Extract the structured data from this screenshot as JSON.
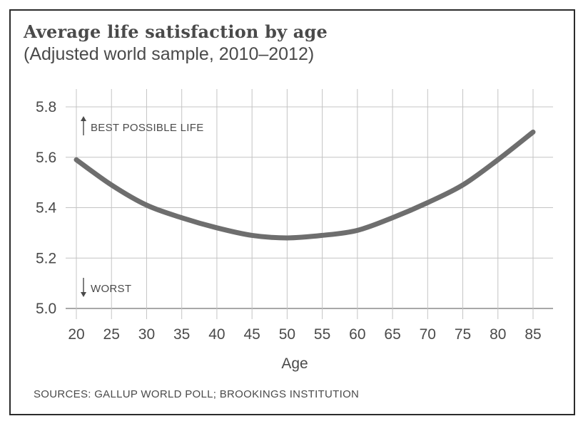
{
  "header": {
    "title": "Average life satisfaction by age",
    "subtitle": "(Adjusted world sample, 2010–2012)"
  },
  "footer": {
    "source": "SOURCES: GALLUP WORLD POLL; BROOKINGS INSTITUTION"
  },
  "chart_data": {
    "type": "line",
    "title": "Average life satisfaction by age",
    "subtitle": "(Adjusted world sample, 2010–2012)",
    "xlabel": "Age",
    "ylabel": "",
    "x": [
      20,
      25,
      30,
      35,
      40,
      45,
      50,
      55,
      60,
      65,
      70,
      75,
      80,
      85
    ],
    "series": [
      {
        "values": [
          5.59,
          5.49,
          5.41,
          5.36,
          5.32,
          5.29,
          5.28,
          5.29,
          5.31,
          5.36,
          5.42,
          5.49,
          5.59,
          5.7
        ]
      }
    ],
    "xticks": [
      "20",
      "25",
      "30",
      "35",
      "40",
      "45",
      "50",
      "55",
      "60",
      "65",
      "70",
      "75",
      "80",
      "85"
    ],
    "yticks": [
      "5.0",
      "5.2",
      "5.4",
      "5.6",
      "5.8"
    ],
    "ytick_values": [
      5.0,
      5.2,
      5.4,
      5.6,
      5.8
    ],
    "xlim": [
      20,
      85
    ],
    "ylim": [
      5.0,
      5.8
    ],
    "grid": true,
    "line_color": "#6e6e6e",
    "grid_color": "#c4c4c4",
    "annotations": [
      {
        "text": "BEST POSSIBLE LIFE",
        "direction": "up"
      },
      {
        "text": "WORST",
        "direction": "down"
      }
    ]
  }
}
